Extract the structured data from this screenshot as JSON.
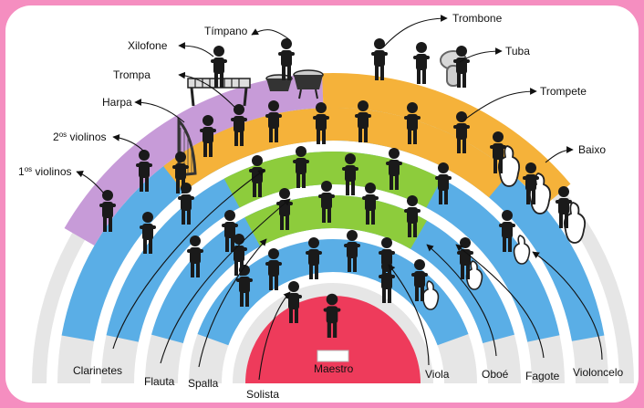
{
  "colors": {
    "frame": "#f58ec0",
    "background": "#ffffff",
    "strings_section": "#5aaee6",
    "harp_section": "#c79bd8",
    "brass_section": "#f5b23a",
    "woodwind_section": "#8dcc3c",
    "conductor_area": "#ee3b5b",
    "steps": "#e6e6e6",
    "figure": "#1a1a1a"
  },
  "labels": {
    "timpano": "Tímpano",
    "trombone": "Trombone",
    "xilofone": "Xilofone",
    "tuba": "Tuba",
    "trompa": "Trompa",
    "harpa": "Harpa",
    "trompete": "Trompete",
    "violinos2_num": "2",
    "violinos2_sup": "os",
    "violinos2_text": " violinos",
    "violinos1_num": "1",
    "violinos1_sup": "os",
    "violinos1_text": " violinos",
    "baixo": "Baixo",
    "clarinetes": "Clarinetes",
    "flauta": "Flauta",
    "spalla": "Spalla",
    "solista": "Solista",
    "maestro": "Maestro",
    "viola": "Viola",
    "oboe": "Oboé",
    "fagote": "Fagote",
    "violoncelo": "Violoncelo"
  }
}
